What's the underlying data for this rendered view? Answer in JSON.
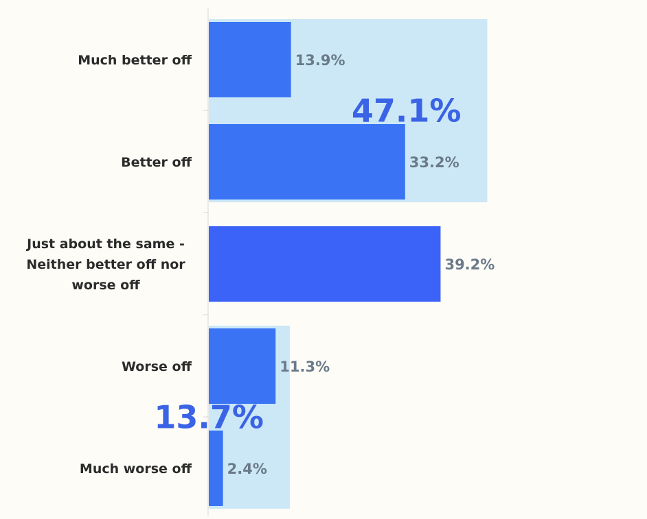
{
  "chart_data": {
    "type": "bar",
    "orientation": "horizontal",
    "categories": [
      [
        "Much better off"
      ],
      [
        "Better off"
      ],
      [
        "Just about the same -",
        "Neither better off nor",
        "worse off"
      ],
      [
        "Worse off"
      ],
      [
        "Much worse off"
      ]
    ],
    "values": [
      13.9,
      33.2,
      39.2,
      11.3,
      2.4
    ],
    "value_labels": [
      "13.9%",
      "33.2%",
      "39.2%",
      "11.3%",
      "2.4%"
    ],
    "xlim": [
      0,
      69
    ],
    "groups": [
      {
        "label": "47.1%",
        "value": 47.1,
        "from": 0,
        "to": 1
      },
      {
        "label": "13.7%",
        "value": 13.7,
        "from": 3,
        "to": 4
      }
    ],
    "title": "",
    "xlabel": "",
    "ylabel": "",
    "grid": false,
    "legend": "none",
    "colors": {
      "bar": "#3a74f5",
      "bar_highlight": "#3c63f7",
      "group_band": "#cce8f6",
      "value_label": "#6a7a8a",
      "group_label": "#3b63e6",
      "category_label": "#2b2b2b",
      "background": "#fdfcf6"
    }
  }
}
